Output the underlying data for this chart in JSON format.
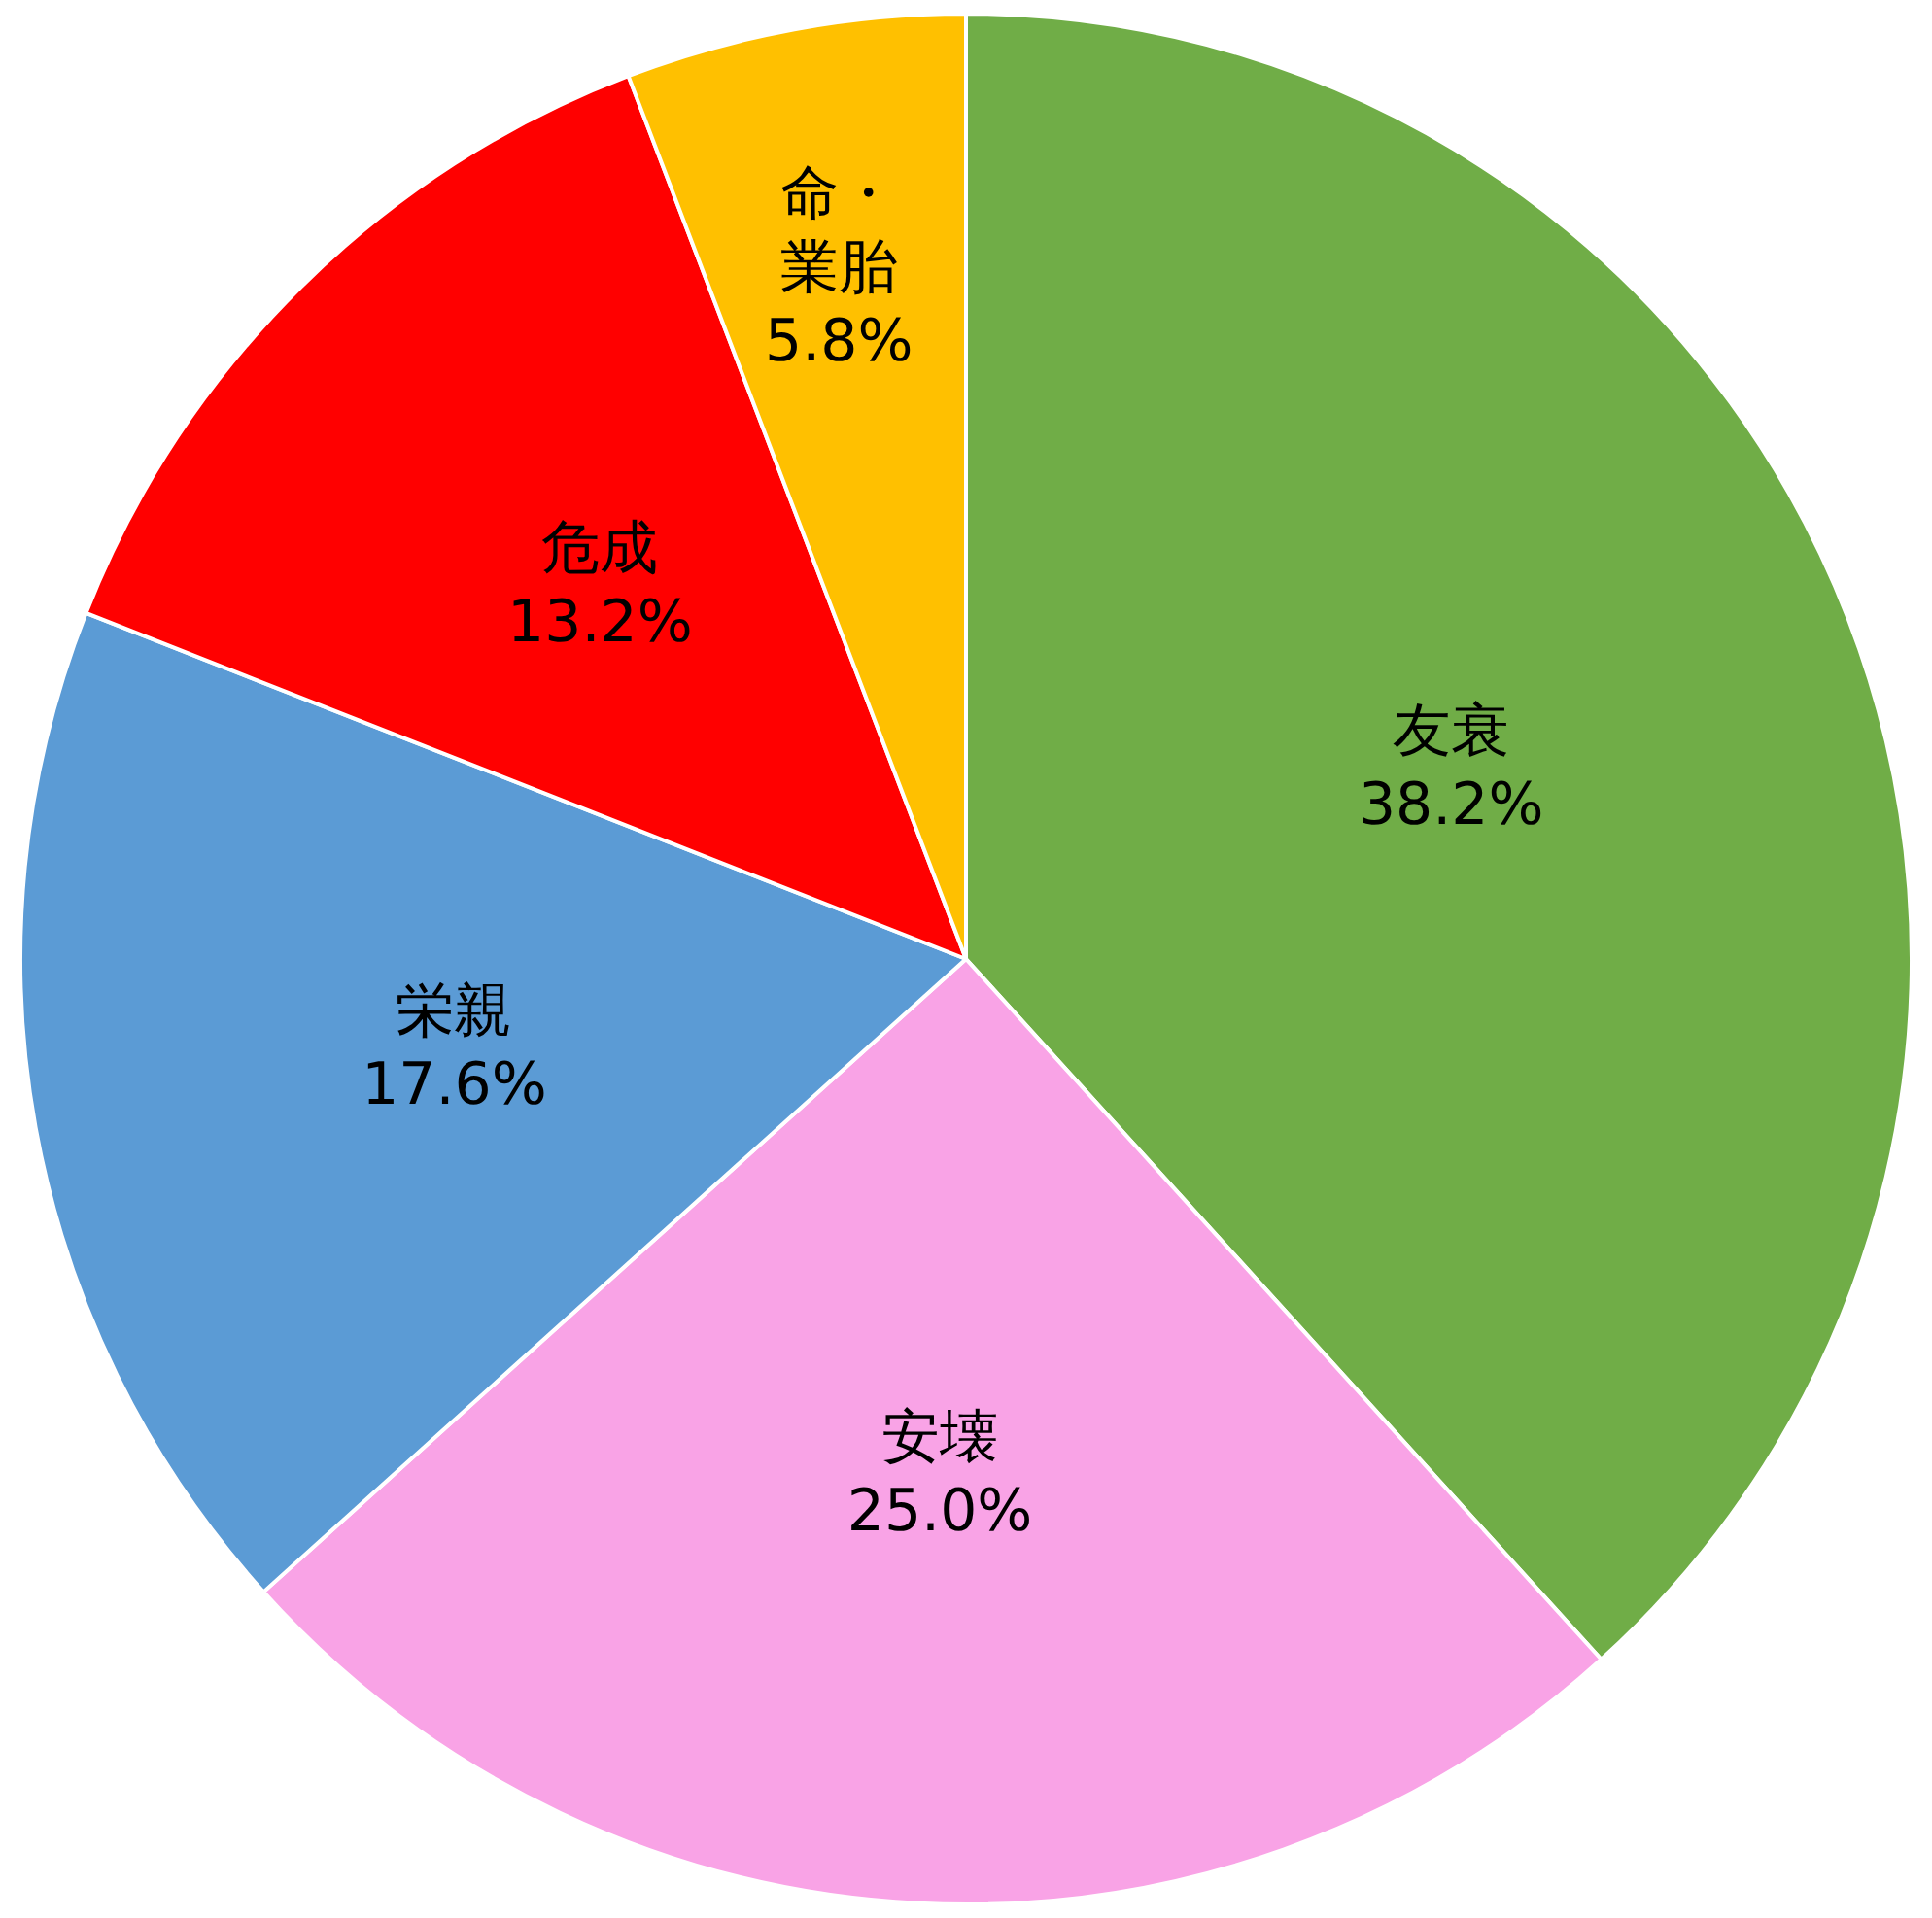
{
  "chart_data": {
    "type": "pie",
    "categories": [
      "友衰",
      "安壊",
      "栄親",
      "危成",
      "命・業胎"
    ],
    "values": [
      38.2,
      25.0,
      17.6,
      13.2,
      5.8
    ],
    "value_labels": [
      "38.2%",
      "25.0%",
      "17.6%",
      "13.2%",
      "5.8%"
    ],
    "colors": [
      "#70ad47",
      "#f9a3e6",
      "#5b9bd5",
      "#ff0000",
      "#ffc000"
    ],
    "legend": false
  }
}
